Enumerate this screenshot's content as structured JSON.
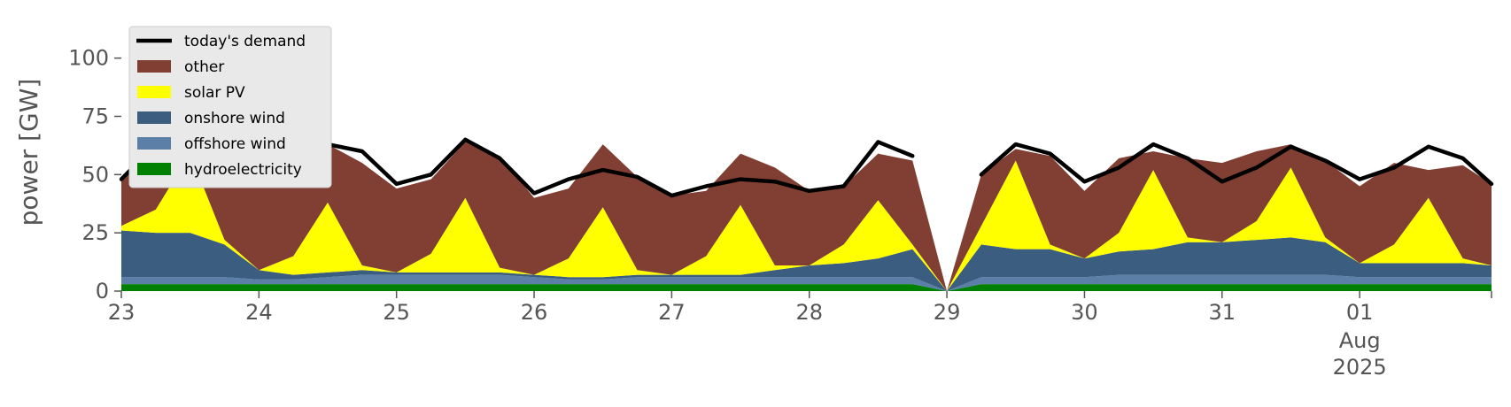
{
  "chart_data": {
    "type": "area",
    "title": "",
    "xlabel": "",
    "ylabel": "power [GW]",
    "ylim": [
      0,
      120
    ],
    "yticks": [
      0,
      25,
      50,
      75,
      100
    ],
    "xlim": [
      "2025-07-23T00:00",
      "2025-08-01T23:00"
    ],
    "xticks": [
      {
        "label": "23",
        "date": "2025-07-23"
      },
      {
        "label": "24",
        "date": "2025-07-24"
      },
      {
        "label": "25",
        "date": "2025-07-25"
      },
      {
        "label": "26",
        "date": "2025-07-26"
      },
      {
        "label": "27",
        "date": "2025-07-27"
      },
      {
        "label": "28",
        "date": "2025-07-28"
      },
      {
        "label": "29",
        "date": "2025-07-29"
      },
      {
        "label": "30",
        "date": "2025-07-30"
      },
      {
        "label": "31",
        "date": "2025-07-31"
      },
      {
        "label": "01",
        "date": "2025-08-01"
      }
    ],
    "xtick_sublabel": {
      "month": "Aug",
      "year": "2025"
    },
    "grid": false,
    "legend_position": "upper-left",
    "x": [
      "2025-07-23T00:00",
      "2025-07-23T06:00",
      "2025-07-23T12:00",
      "2025-07-23T18:00",
      "2025-07-24T00:00",
      "2025-07-24T06:00",
      "2025-07-24T12:00",
      "2025-07-24T18:00",
      "2025-07-25T00:00",
      "2025-07-25T06:00",
      "2025-07-25T12:00",
      "2025-07-25T18:00",
      "2025-07-26T00:00",
      "2025-07-26T06:00",
      "2025-07-26T12:00",
      "2025-07-26T18:00",
      "2025-07-27T00:00",
      "2025-07-27T06:00",
      "2025-07-27T12:00",
      "2025-07-27T18:00",
      "2025-07-28T00:00",
      "2025-07-28T06:00",
      "2025-07-28T12:00",
      "2025-07-28T18:00",
      "2025-07-29T00:00",
      "2025-07-29T06:00",
      "2025-07-29T12:00",
      "2025-07-29T18:00",
      "2025-07-30T00:00",
      "2025-07-30T06:00",
      "2025-07-30T12:00",
      "2025-07-30T18:00",
      "2025-07-31T00:00",
      "2025-07-31T06:00",
      "2025-07-31T12:00",
      "2025-07-31T18:00",
      "2025-08-01T00:00",
      "2025-08-01T06:00",
      "2025-08-01T12:00",
      "2025-08-01T18:00",
      "2025-08-01T23:00"
    ],
    "series": [
      {
        "name": "hydroelectricity",
        "kind": "area",
        "color": "#008000",
        "values": [
          3,
          3,
          3,
          3,
          3,
          3,
          3,
          3,
          3,
          3,
          3,
          3,
          3,
          3,
          3,
          3,
          3,
          3,
          3,
          3,
          3,
          3,
          3,
          3,
          0,
          3,
          3,
          3,
          3,
          3,
          3,
          3,
          3,
          3,
          3,
          3,
          3,
          3,
          3,
          3,
          3
        ]
      },
      {
        "name": "offshore wind",
        "kind": "area",
        "color": "#5b7fa6",
        "values": [
          3,
          3,
          3,
          3,
          2,
          2,
          3,
          4,
          4,
          4,
          4,
          4,
          3,
          2,
          2,
          3,
          3,
          3,
          3,
          3,
          3,
          3,
          3,
          3,
          0,
          3,
          3,
          3,
          3,
          4,
          4,
          4,
          4,
          4,
          4,
          4,
          3,
          3,
          3,
          3,
          3
        ]
      },
      {
        "name": "onshore wind",
        "kind": "area",
        "color": "#3b5e80",
        "values": [
          20,
          19,
          19,
          14,
          4,
          2,
          2,
          2,
          1,
          1,
          1,
          1,
          1,
          1,
          1,
          1,
          1,
          1,
          1,
          3,
          5,
          6,
          8,
          12,
          0,
          14,
          12,
          12,
          8,
          10,
          11,
          14,
          14,
          15,
          16,
          14,
          6,
          6,
          6,
          6,
          5
        ]
      },
      {
        "name": "solar PV",
        "kind": "area",
        "color": "#ffff00",
        "values": [
          2,
          10,
          34,
          2,
          0,
          8,
          30,
          2,
          0,
          8,
          32,
          2,
          0,
          8,
          30,
          2,
          0,
          8,
          30,
          2,
          0,
          8,
          25,
          2,
          0,
          8,
          38,
          2,
          0,
          8,
          34,
          2,
          0,
          8,
          30,
          2,
          0,
          8,
          28,
          2,
          0
        ]
      },
      {
        "name": "other",
        "kind": "area",
        "color": "#813f33",
        "values": [
          20,
          28,
          6,
          38,
          37,
          30,
          25,
          44,
          36,
          32,
          24,
          48,
          33,
          30,
          27,
          40,
          34,
          28,
          22,
          42,
          32,
          25,
          20,
          36,
          0,
          22,
          5,
          38,
          29,
          32,
          8,
          34,
          34,
          30,
          10,
          33,
          33,
          35,
          12,
          40,
          35
        ]
      },
      {
        "name": "today's demand",
        "kind": "line",
        "color": "#000000",
        "values": [
          48,
          63,
          65,
          61,
          46,
          53,
          63,
          60,
          46,
          50,
          65,
          57,
          42,
          48,
          52,
          49,
          41,
          45,
          48,
          47,
          43,
          45,
          64,
          58,
          null,
          50,
          63,
          59,
          47,
          53,
          63,
          57,
          47,
          53,
          62,
          56,
          48,
          53,
          62,
          57,
          46
        ]
      }
    ]
  }
}
